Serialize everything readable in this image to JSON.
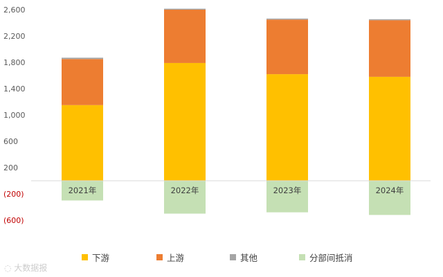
{
  "chart_data": {
    "type": "bar",
    "stacked": true,
    "categories": [
      "2021年",
      "2022年",
      "2023年",
      "2024年"
    ],
    "series": [
      {
        "name": "下游",
        "color": "#ffc000",
        "values": [
          1150,
          1790,
          1620,
          1580
        ]
      },
      {
        "name": "上游",
        "color": "#ed7d31",
        "values": [
          700,
          810,
          830,
          860
        ]
      },
      {
        "name": "其他",
        "color": "#a5a5a5",
        "values": [
          20,
          15,
          15,
          15
        ]
      },
      {
        "name": "分部间抵消",
        "color": "#c5e0b4",
        "values": [
          -300,
          -500,
          -480,
          -520
        ]
      }
    ],
    "y_ticks": [
      {
        "value": 2600,
        "label": "2,600"
      },
      {
        "value": 2200,
        "label": "2,200"
      },
      {
        "value": 1800,
        "label": "1,800"
      },
      {
        "value": 1400,
        "label": "1,400"
      },
      {
        "value": 1000,
        "label": "1,000"
      },
      {
        "value": 600,
        "label": "600"
      },
      {
        "value": 200,
        "label": "200"
      },
      {
        "value": -200,
        "label": "(200)"
      },
      {
        "value": -600,
        "label": "(600)"
      }
    ],
    "ylim": [
      -600,
      2600
    ],
    "grid": false,
    "legend_position": "bottom",
    "negative_label_color": "#c00000",
    "category_label_position": "inside-negative-bar"
  },
  "watermark": {
    "text": "大数据报"
  }
}
